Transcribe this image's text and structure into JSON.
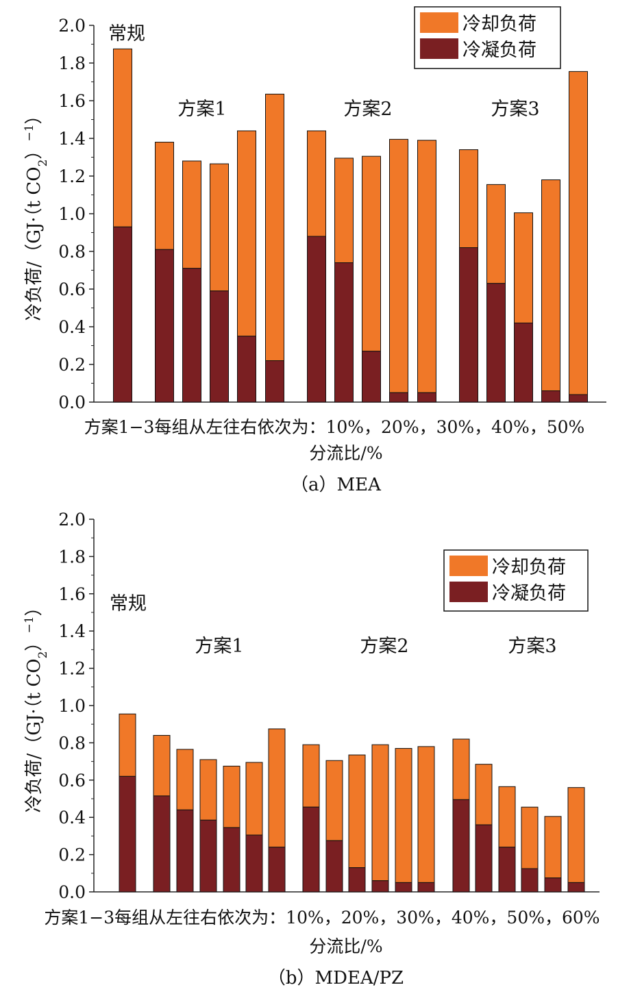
{
  "colors": {
    "cooling": "#F07828",
    "condensing": "#7A1F22",
    "axis": "#222222"
  },
  "chart_data": [
    {
      "type": "bar",
      "stacked": true,
      "caption": "（a）MEA",
      "xlabel": "分流比/%",
      "x_note": "方案1−3每组从左往右依次为：10%，20%，30%，40%，50%",
      "ylabel_main": "冷负荷/（GJ·（t CO",
      "ylabel_sub": "2",
      "ylabel_tail": "）",
      "ylabel_sup": "−1",
      "ylabel_end": "）",
      "ylim": [
        0,
        2.0
      ],
      "yticks": [
        "0.0",
        "0.2",
        "0.4",
        "0.6",
        "0.8",
        "1.0",
        "1.2",
        "1.4",
        "1.6",
        "1.8",
        "2.0"
      ],
      "legend": [
        "冷却负荷",
        "冷凝负荷"
      ],
      "legend_position": "top-right",
      "groups": [
        {
          "label": "常规",
          "condensing": [
            0.93
          ],
          "cooling": [
            0.945
          ]
        },
        {
          "label": "方案1",
          "condensing": [
            0.81,
            0.71,
            0.59,
            0.35,
            0.22
          ],
          "cooling": [
            0.57,
            0.57,
            0.675,
            1.09,
            1.415
          ]
        },
        {
          "label": "方案2",
          "condensing": [
            0.88,
            0.74,
            0.27,
            0.05,
            0.05
          ],
          "cooling": [
            0.56,
            0.555,
            1.035,
            1.345,
            1.34
          ]
        },
        {
          "label": "方案3",
          "condensing": [
            0.82,
            0.63,
            0.42,
            0.06,
            0.04
          ],
          "cooling": [
            0.52,
            0.525,
            0.585,
            1.12,
            1.715
          ]
        }
      ]
    },
    {
      "type": "bar",
      "stacked": true,
      "caption": "（b）MDEA/PZ",
      "xlabel": "分流比/%",
      "x_note": "方案1−3每组从左往右依次为：10%，20%，30%，40%，50%，60%",
      "ylabel_main": "冷负荷/（GJ·（t CO",
      "ylabel_sub": "2",
      "ylabel_tail": "）",
      "ylabel_sup": "−1",
      "ylabel_end": "）",
      "ylim": [
        0,
        2.0
      ],
      "yticks": [
        "0.0",
        "0.2",
        "0.4",
        "0.6",
        "0.8",
        "1.0",
        "1.2",
        "1.4",
        "1.6",
        "1.8",
        "2.0"
      ],
      "legend": [
        "冷却负荷",
        "冷凝负荷"
      ],
      "legend_position": "top-right",
      "groups": [
        {
          "label": "常规",
          "condensing": [
            0.62
          ],
          "cooling": [
            0.335
          ]
        },
        {
          "label": "方案1",
          "condensing": [
            0.515,
            0.44,
            0.385,
            0.345,
            0.305,
            0.24
          ],
          "cooling": [
            0.325,
            0.325,
            0.325,
            0.33,
            0.39,
            0.635
          ]
        },
        {
          "label": "方案2",
          "condensing": [
            0.455,
            0.275,
            0.13,
            0.06,
            0.05,
            0.05
          ],
          "cooling": [
            0.335,
            0.43,
            0.605,
            0.73,
            0.72,
            0.73
          ]
        },
        {
          "label": "方案3",
          "condensing": [
            0.495,
            0.36,
            0.24,
            0.125,
            0.075,
            0.05
          ],
          "cooling": [
            0.325,
            0.325,
            0.325,
            0.33,
            0.33,
            0.51
          ]
        }
      ]
    }
  ]
}
